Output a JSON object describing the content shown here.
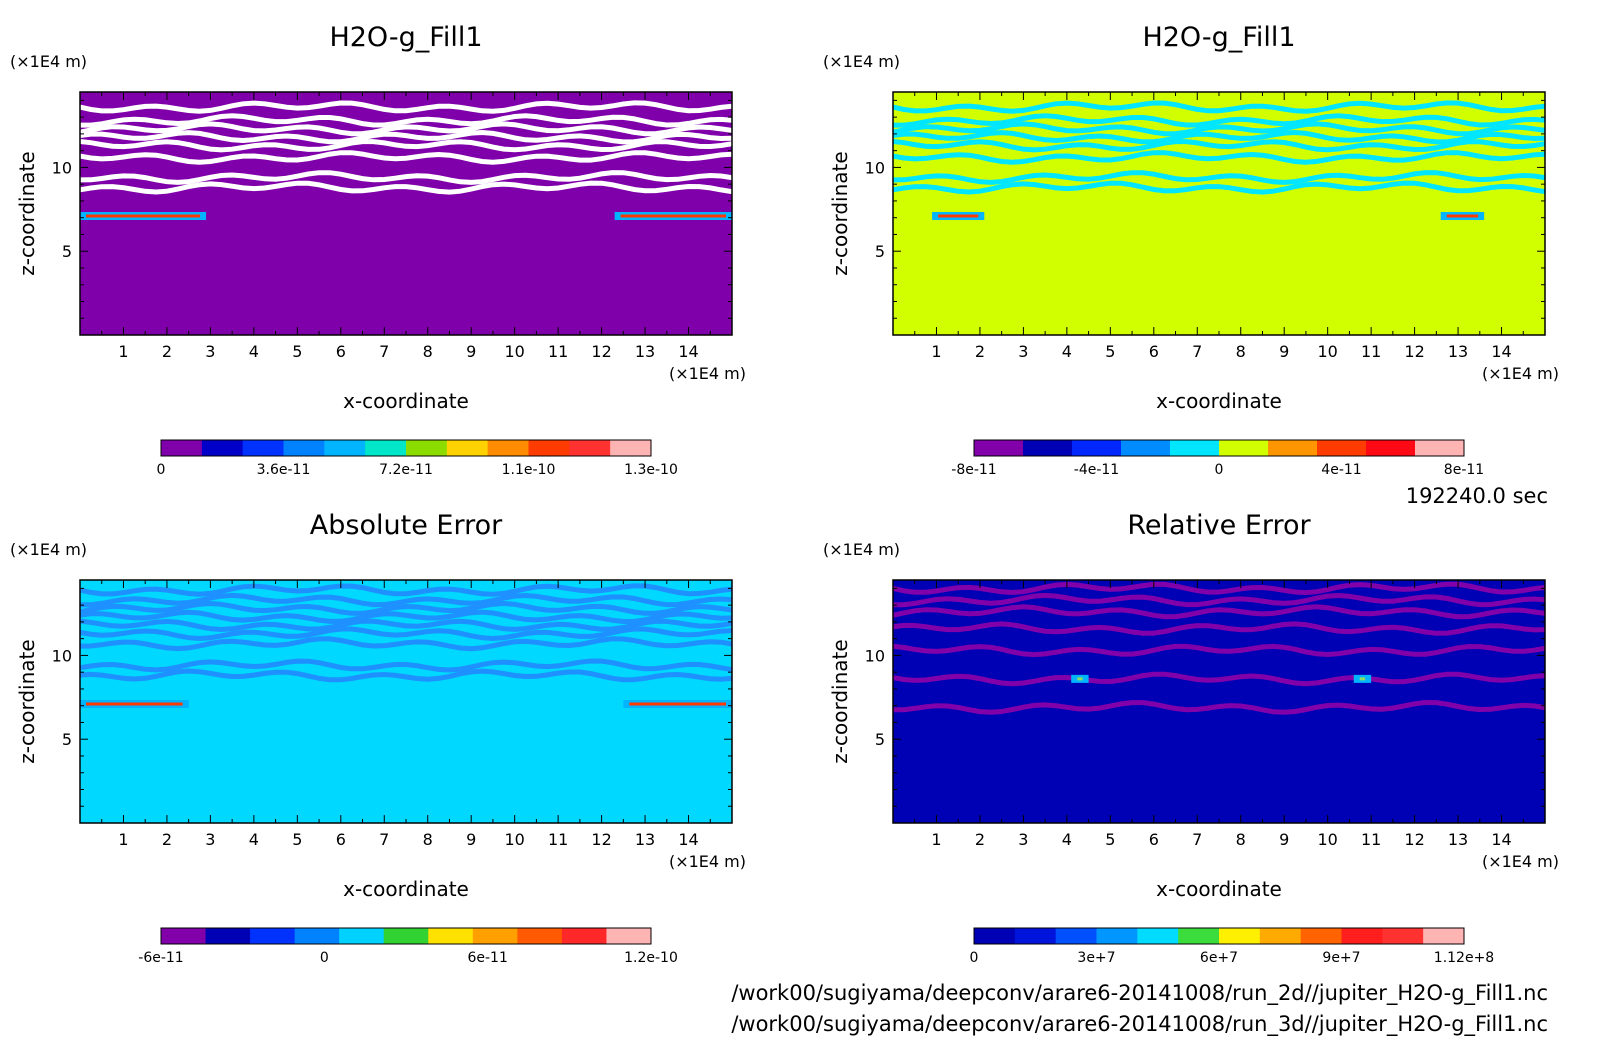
{
  "figure": {
    "time_label": "192240.0 sec",
    "file_paths": [
      "/work00/sugiyama/deepconv/arare6-20141008/run_2d//jupiter_H2O-g_Fill1.nc",
      "/work00/sugiyama/deepconv/arare6-20141008/run_3d//jupiter_H2O-g_Fill1.nc"
    ]
  },
  "chart_data": [
    {
      "type": "heatmap",
      "title": "H2O-g_Fill1",
      "xlabel": "x-coordinate",
      "ylabel": "z-coordinate",
      "x_unit": "(×1E4 m)",
      "y_unit": "(×1E4 m)",
      "xlim": [
        0,
        15
      ],
      "ylim": [
        0,
        14.5
      ],
      "x_ticks": [
        1,
        2,
        3,
        4,
        5,
        6,
        7,
        8,
        9,
        10,
        11,
        12,
        13,
        14
      ],
      "y_ticks": [
        5,
        10
      ],
      "background": "#7f00aa",
      "features": [
        {
          "kind": "bands",
          "color": "#ffffff",
          "z": [
            13.6,
            12.8,
            12.3,
            11.8,
            11.3,
            10.6,
            9.4,
            8.8
          ]
        },
        {
          "kind": "streak",
          "color": "#ff3a00",
          "z": 7.1,
          "x": [
            [
              0,
              2.9
            ],
            [
              12.3,
              15
            ]
          ]
        }
      ],
      "colorbar": {
        "colors": [
          "#7f00aa",
          "#0000c8",
          "#0032ff",
          "#0082ff",
          "#00b4ff",
          "#00e6c8",
          "#8cdc00",
          "#ffd200",
          "#ff8c00",
          "#ff3c00",
          "#ff3232",
          "#ffb4b4"
        ],
        "tick_labels": [
          "0",
          "3.6e-11",
          "7.2e-11",
          "1.1e-10",
          "1.3e-10"
        ]
      }
    },
    {
      "type": "heatmap",
      "title": "H2O-g_Fill1",
      "xlabel": "x-coordinate",
      "ylabel": "z-coordinate",
      "x_unit": "(×1E4 m)",
      "y_unit": "(×1E4 m)",
      "xlim": [
        0,
        15
      ],
      "ylim": [
        0,
        14.5
      ],
      "x_ticks": [
        1,
        2,
        3,
        4,
        5,
        6,
        7,
        8,
        9,
        10,
        11,
        12,
        13,
        14
      ],
      "y_ticks": [
        5,
        10
      ],
      "background": "#d2ff00",
      "features": [
        {
          "kind": "bands",
          "color": "#00e6ff",
          "z": [
            13.6,
            12.8,
            12.3,
            11.8,
            11.3,
            10.6,
            9.4,
            8.8
          ]
        },
        {
          "kind": "streak",
          "color": "#ff3a00",
          "z": 7.1,
          "x": [
            [
              0.9,
              2.1
            ],
            [
              12.6,
              13.6
            ]
          ]
        }
      ],
      "colorbar": {
        "colors": [
          "#8200aa",
          "#0000b4",
          "#0028ff",
          "#008cff",
          "#00e6ff",
          "#d2ff00",
          "#ff9600",
          "#ff3c00",
          "#ff0a14",
          "#ffb4b4"
        ],
        "tick_labels": [
          "-8e-11",
          "-4e-11",
          "0",
          "4e-11",
          "8e-11"
        ]
      }
    },
    {
      "type": "heatmap",
      "title": "Absolute Error",
      "xlabel": "x-coordinate",
      "ylabel": "z-coordinate",
      "x_unit": "(×1E4 m)",
      "y_unit": "(×1E4 m)",
      "xlim": [
        0,
        15
      ],
      "ylim": [
        0,
        14.5
      ],
      "x_ticks": [
        1,
        2,
        3,
        4,
        5,
        6,
        7,
        8,
        9,
        10,
        11,
        12,
        13,
        14
      ],
      "y_ticks": [
        5,
        10
      ],
      "background": "#00d8ff",
      "features": [
        {
          "kind": "bands",
          "color": "#1e90ff",
          "z": [
            13.9,
            13.3,
            12.8,
            12.3,
            11.8,
            11.3,
            10.7,
            9.4,
            8.8
          ]
        },
        {
          "kind": "streak",
          "color": "#ff3a00",
          "z": 7.1,
          "x": [
            [
              0,
              2.5
            ],
            [
              12.5,
              15
            ]
          ]
        }
      ],
      "colorbar": {
        "colors": [
          "#8200aa",
          "#0000b4",
          "#0032ff",
          "#0082ff",
          "#00d2ff",
          "#32d232",
          "#ffe100",
          "#ffa000",
          "#ff5a00",
          "#ff2828",
          "#ffb4b4"
        ],
        "tick_labels": [
          "-6e-11",
          "0",
          "6e-11",
          "1.2e-10"
        ]
      }
    },
    {
      "type": "heatmap",
      "title": "Relative Error",
      "xlabel": "x-coordinate",
      "ylabel": "z-coordinate",
      "x_unit": "(×1E4 m)",
      "y_unit": "(×1E4 m)",
      "xlim": [
        0,
        15
      ],
      "ylim": [
        0,
        14.5
      ],
      "x_ticks": [
        1,
        2,
        3,
        4,
        5,
        6,
        7,
        8,
        9,
        10,
        11,
        12,
        13,
        14
      ],
      "y_ticks": [
        5,
        10
      ],
      "background": "#0000b4",
      "features": [
        {
          "kind": "bands",
          "color": "#8200aa",
          "z": [
            14.0,
            13.3,
            12.6,
            11.6,
            10.3,
            8.6,
            6.9
          ]
        },
        {
          "kind": "streak",
          "color": "#8cdc64",
          "z": 8.6,
          "x": [
            [
              4.1,
              4.5
            ],
            [
              10.6,
              11.0
            ]
          ]
        }
      ],
      "colorbar": {
        "colors": [
          "#0000b4",
          "#0014dc",
          "#0050ff",
          "#0096ff",
          "#00dcff",
          "#3cdc3c",
          "#fff000",
          "#ffaa00",
          "#ff6400",
          "#ff1e1e",
          "#ff3232",
          "#ffb4b4"
        ],
        "tick_labels": [
          "0",
          "3e+7",
          "6e+7",
          "9e+7",
          "1.12e+8"
        ]
      }
    }
  ]
}
